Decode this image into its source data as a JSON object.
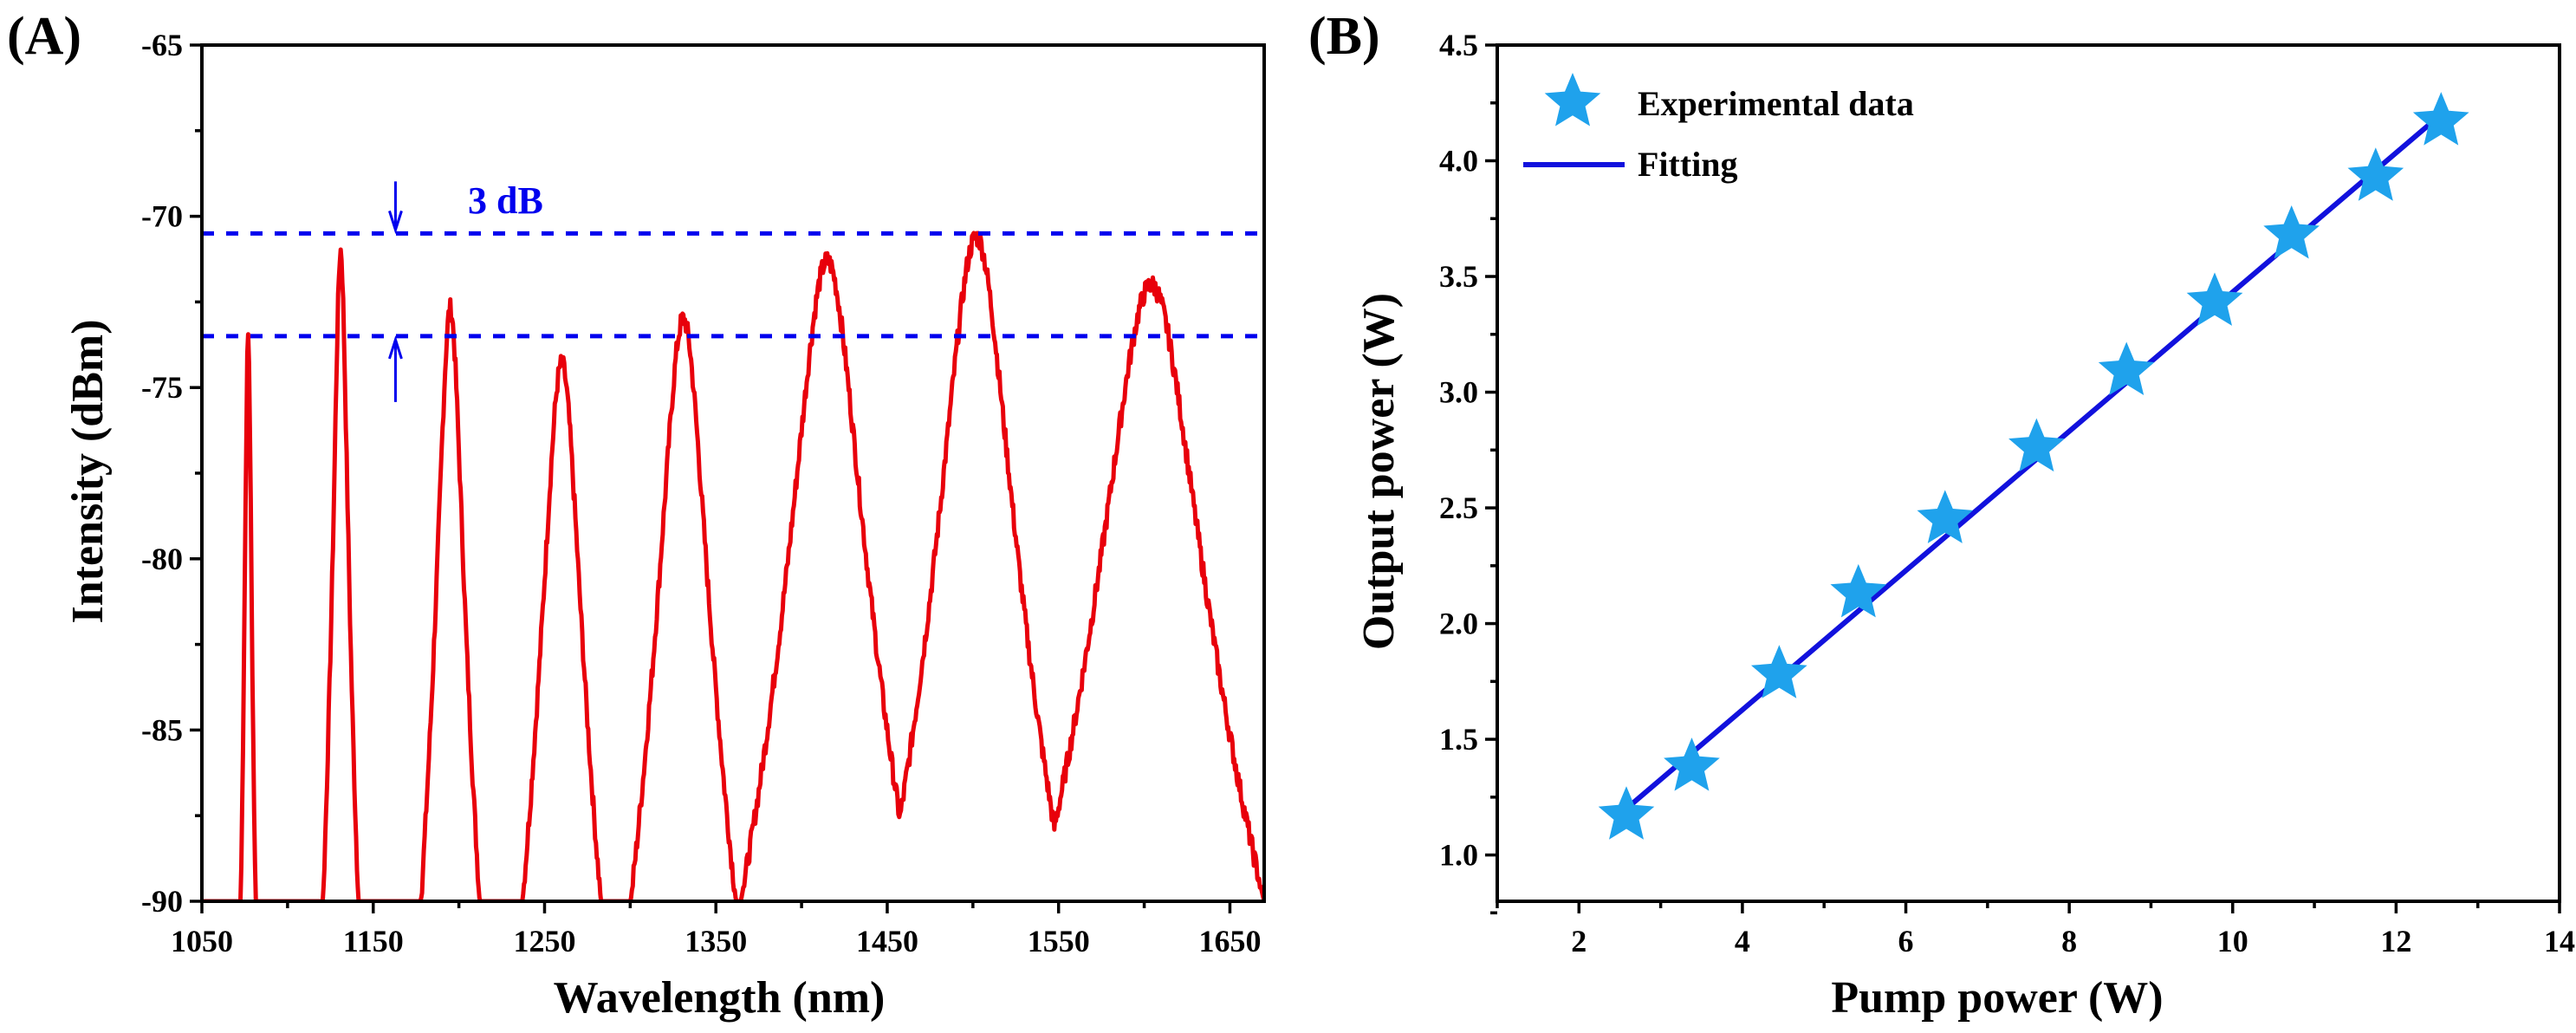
{
  "chart_data": [
    {
      "panel_label": "(A)",
      "type": "line",
      "xlabel": "Wavelength (nm)",
      "ylabel": "Intensity (dBm)",
      "xlim": [
        1050,
        1670
      ],
      "ylim": [
        -90,
        -65
      ],
      "xticks": [
        1050,
        1150,
        1250,
        1350,
        1450,
        1550,
        1650
      ],
      "yticks": [
        -90,
        -85,
        -80,
        -75,
        -70,
        -65
      ],
      "line_color": "#e8000b",
      "peaks": [
        {
          "center": 1077,
          "peak": -73.5,
          "width": 1.6
        },
        {
          "center": 1131,
          "peak": -71.0,
          "width": 3.2
        },
        {
          "center": 1195,
          "peak": -72.7,
          "width": 6.0
        },
        {
          "center": 1260,
          "peak": -74.3,
          "width": 9.0
        },
        {
          "center": 1331,
          "peak": -73.0,
          "width": 11.0
        },
        {
          "center": 1415,
          "peak": -71.3,
          "width": 16.0
        },
        {
          "center": 1502,
          "peak": -70.6,
          "width": 16.0
        },
        {
          "center": 1604,
          "peak": -72.0,
          "width": 22.0
        }
      ],
      "noise_floor": -90,
      "reference_lines": {
        "values": [
          -70.5,
          -73.5
        ],
        "color": "#0000ee",
        "annotation": "3 dB",
        "arrow_x": 1163
      }
    },
    {
      "panel_label": "(B)",
      "type": "scatter",
      "xlabel": "Pump power (W)",
      "ylabel": "Output power (W)",
      "xlim": [
        1,
        14
      ],
      "ylim": [
        0.8,
        4.5
      ],
      "xticks": [
        2,
        4,
        6,
        8,
        10,
        12,
        14
      ],
      "yticks": [
        1.0,
        1.5,
        2.0,
        2.5,
        3.0,
        3.5,
        4.0,
        4.5
      ],
      "ytick_labels": [
        "1.0",
        "1.5",
        "2.0",
        "2.5",
        "3.0",
        "3.5",
        "4.0",
        "4.5"
      ],
      "series": [
        {
          "name": "Experimental data",
          "marker": "star",
          "color": "#1fa2ec",
          "x": [
            2.58,
            3.38,
            4.45,
            5.42,
            6.48,
            7.6,
            8.7,
            9.78,
            10.72,
            11.75,
            12.55
          ],
          "y": [
            1.17,
            1.38,
            1.78,
            2.13,
            2.45,
            2.76,
            3.09,
            3.39,
            3.68,
            3.93,
            4.17
          ]
        },
        {
          "name": "Fitting",
          "marker": "line",
          "color": "#1111dd",
          "x": [
            2.58,
            12.55
          ],
          "y": [
            1.2,
            4.2
          ]
        }
      ],
      "legend_position": "top-left"
    }
  ]
}
